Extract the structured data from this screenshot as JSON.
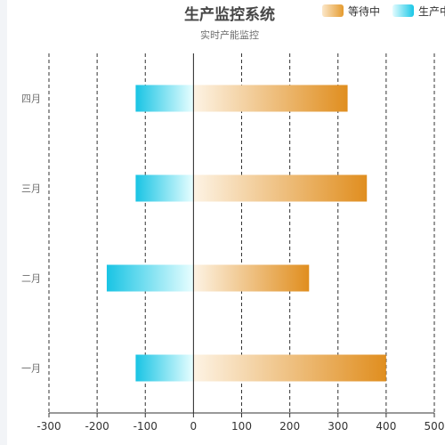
{
  "chart_data": {
    "type": "bar",
    "orientation": "horizontal",
    "title": "生产监控系统",
    "subtitle": "实时产能监控",
    "categories": [
      "一月",
      "二月",
      "三月",
      "四月"
    ],
    "series": [
      {
        "name": "等待中",
        "values": [
          400,
          240,
          360,
          320
        ],
        "color_start": "#fdf3e4",
        "color_end": "#e08e1f"
      },
      {
        "name": "生产中",
        "values": [
          -120,
          -180,
          -120,
          -120
        ],
        "color_start": "#e8feff",
        "color_end": "#19c4e4"
      }
    ],
    "xlim": [
      -300,
      500
    ],
    "xticks": [
      -300,
      -200,
      -100,
      0,
      100,
      200,
      300,
      400,
      500
    ],
    "grid": "vertical dashed",
    "legend_position": "top-right",
    "axis_color": "#333333",
    "tick_label_color": "#6e6e6e"
  }
}
